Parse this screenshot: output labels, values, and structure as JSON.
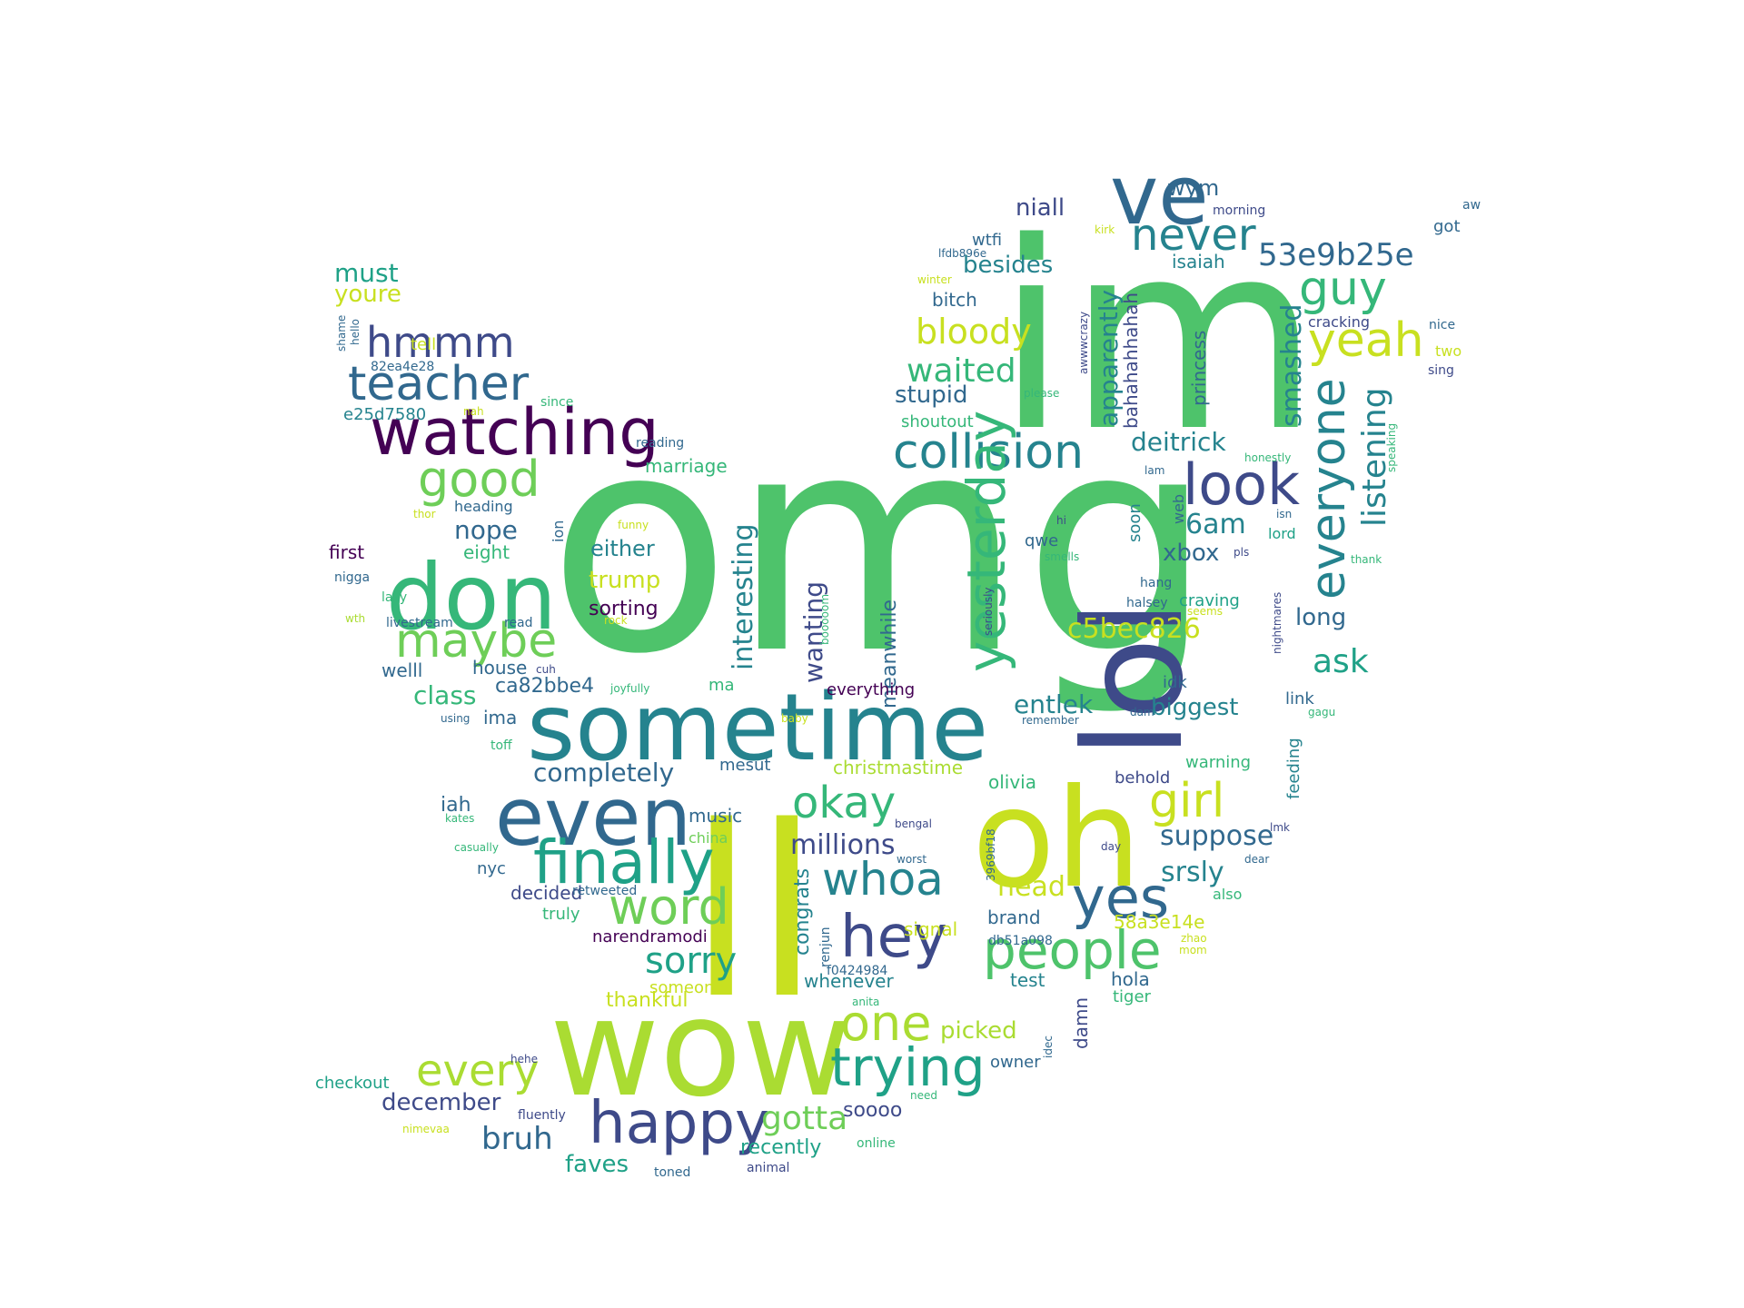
{
  "words": [
    {
      "text": "omg",
      "color": "#4ec36b"
    },
    {
      "text": "im",
      "color": "#4ec36b"
    },
    {
      "text": "ll",
      "color": "#c8e020"
    },
    {
      "text": "wow",
      "color": "#aadc32"
    },
    {
      "text": "lol",
      "color": "#3e4a89"
    },
    {
      "text": "oh",
      "color": "#c8e020"
    },
    {
      "text": "sometime",
      "color": "#25838e"
    },
    {
      "text": "don",
      "color": "#35b779"
    },
    {
      "text": "even",
      "color": "#31688e"
    },
    {
      "text": "ve",
      "color": "#31688e"
    },
    {
      "text": "watching",
      "color": "#440154"
    },
    {
      "text": "finally",
      "color": "#1fa187"
    },
    {
      "text": "happy",
      "color": "#3e4a89"
    },
    {
      "text": "collision",
      "color": "#25838e"
    },
    {
      "text": "look",
      "color": "#3e4a89"
    },
    {
      "text": "hey",
      "color": "#3e4a89"
    },
    {
      "text": "people",
      "color": "#4ec36b"
    },
    {
      "text": "yes",
      "color": "#31688e"
    },
    {
      "text": "trying",
      "color": "#1fa187"
    },
    {
      "text": "word",
      "color": "#6ece58"
    },
    {
      "text": "maybe",
      "color": "#6ece58"
    },
    {
      "text": "everyone",
      "color": "#25838e"
    },
    {
      "text": "yesterday",
      "color": "#35b779"
    },
    {
      "text": "teacher",
      "color": "#31688e"
    },
    {
      "text": "good",
      "color": "#6ece58"
    },
    {
      "text": "guy",
      "color": "#35b779"
    },
    {
      "text": "yeah",
      "color": "#c8e020"
    },
    {
      "text": "girl",
      "color": "#c8e020"
    },
    {
      "text": "okay",
      "color": "#35b779"
    },
    {
      "text": "whoa",
      "color": "#25838e"
    },
    {
      "text": "one",
      "color": "#aadc32"
    },
    {
      "text": "every",
      "color": "#aadc32"
    },
    {
      "text": "never",
      "color": "#25838e"
    },
    {
      "text": "hmmm",
      "color": "#3e4a89"
    },
    {
      "text": "bloody",
      "color": "#c8e020"
    },
    {
      "text": "waited",
      "color": "#35b779"
    },
    {
      "text": "53e9b25e",
      "color": "#31688e"
    },
    {
      "text": "sorry",
      "color": "#1fa187"
    },
    {
      "text": "gotta",
      "color": "#6ece58"
    },
    {
      "text": "listening",
      "color": "#25838e"
    },
    {
      "text": "smashed",
      "color": "#25838e"
    },
    {
      "text": "interesting",
      "color": "#25838e"
    },
    {
      "text": "bruh",
      "color": "#31688e"
    },
    {
      "text": "millions",
      "color": "#3e4a89"
    },
    {
      "text": "completely",
      "color": "#31688e"
    },
    {
      "text": "suppose",
      "color": "#31688e"
    },
    {
      "text": "wanting",
      "color": "#3e4a89"
    },
    {
      "text": "apparently",
      "color": "#25838e"
    },
    {
      "text": "6am",
      "color": "#25838e"
    },
    {
      "text": "c5bec826",
      "color": "#c8e020"
    },
    {
      "text": "ask",
      "color": "#1fa187"
    },
    {
      "text": "nope",
      "color": "#31688e"
    },
    {
      "text": "srsly",
      "color": "#25838e"
    },
    {
      "text": "head",
      "color": "#c8e020"
    },
    {
      "text": "picked",
      "color": "#aadc32"
    },
    {
      "text": "december",
      "color": "#3e4a89"
    },
    {
      "text": "faves",
      "color": "#1fa187"
    },
    {
      "text": "deitrick",
      "color": "#25838e"
    },
    {
      "text": "biggest",
      "color": "#25838e"
    },
    {
      "text": "entlek",
      "color": "#25838e"
    },
    {
      "text": "stupid",
      "color": "#31688e"
    },
    {
      "text": "long",
      "color": "#31688e"
    },
    {
      "text": "xbox",
      "color": "#31688e"
    },
    {
      "text": "besides",
      "color": "#25838e"
    },
    {
      "text": "niall",
      "color": "#3e4a89"
    },
    {
      "text": "trump",
      "color": "#c8e020"
    },
    {
      "text": "class",
      "color": "#35b779"
    },
    {
      "text": "meanwhile",
      "color": "#31688e"
    },
    {
      "text": "congrats",
      "color": "#25838e"
    },
    {
      "text": "must",
      "color": "#1fa187"
    },
    {
      "text": "youre",
      "color": "#c8e020"
    },
    {
      "text": "either",
      "color": "#25838e"
    },
    {
      "text": "sorting",
      "color": "#440154"
    },
    {
      "text": "ca82bbe4",
      "color": "#31688e"
    },
    {
      "text": "recently",
      "color": "#1fa187"
    },
    {
      "text": "soooo",
      "color": "#3e4a89"
    },
    {
      "text": "wym",
      "color": "#31688e"
    },
    {
      "text": "isaiah",
      "color": "#25838e"
    },
    {
      "text": "bahahahhahah",
      "color": "#3e4a89"
    },
    {
      "text": "princess",
      "color": "#31688e"
    },
    {
      "text": "shoutout",
      "color": "#35b779"
    },
    {
      "text": "marriage",
      "color": "#35b779"
    },
    {
      "text": "eight",
      "color": "#35b779"
    },
    {
      "text": "first",
      "color": "#440154"
    },
    {
      "text": "welll",
      "color": "#31688e"
    },
    {
      "text": "house",
      "color": "#31688e"
    },
    {
      "text": "ima",
      "color": "#31688e"
    },
    {
      "text": "iah",
      "color": "#31688e"
    },
    {
      "text": "music",
      "color": "#31688e"
    },
    {
      "text": "decided",
      "color": "#3e4a89"
    },
    {
      "text": "narendramodi",
      "color": "#440154"
    },
    {
      "text": "thankful",
      "color": "#c8e020"
    },
    {
      "text": "whenever",
      "color": "#25838e"
    },
    {
      "text": "checkout",
      "color": "#1fa187"
    },
    {
      "text": "mesut",
      "color": "#31688e"
    },
    {
      "text": "christmastime",
      "color": "#aadc32"
    },
    {
      "text": "olivia",
      "color": "#35b779"
    },
    {
      "text": "behold",
      "color": "#3e4a89"
    },
    {
      "text": "warning",
      "color": "#35b779"
    },
    {
      "text": "brand",
      "color": "#31688e"
    },
    {
      "text": "58a3e14e",
      "color": "#c8e020"
    },
    {
      "text": "hola",
      "color": "#31688e"
    },
    {
      "text": "test",
      "color": "#25838e"
    },
    {
      "text": "signal",
      "color": "#c8e020"
    },
    {
      "text": "owner",
      "color": "#31688e"
    },
    {
      "text": "damn",
      "color": "#3e4a89"
    },
    {
      "text": "tiger",
      "color": "#35b779"
    },
    {
      "text": "everything",
      "color": "#440154"
    },
    {
      "text": "ma",
      "color": "#35b779"
    },
    {
      "text": "link",
      "color": "#31688e"
    },
    {
      "text": "idk",
      "color": "#31688e"
    },
    {
      "text": "craving",
      "color": "#1fa187"
    },
    {
      "text": "feeding",
      "color": "#25838e"
    },
    {
      "text": "qwe",
      "color": "#31688e"
    },
    {
      "text": "soon",
      "color": "#25838e"
    },
    {
      "text": "web",
      "color": "#31688e"
    },
    {
      "text": "lord",
      "color": "#1fa187"
    },
    {
      "text": "bitch",
      "color": "#31688e"
    },
    {
      "text": "wtfi",
      "color": "#31688e"
    },
    {
      "text": "got",
      "color": "#31688e"
    },
    {
      "text": "cracking",
      "color": "#3e4a89"
    },
    {
      "text": "morning",
      "color": "#3e4a89"
    },
    {
      "text": "tell",
      "color": "#c8e020"
    },
    {
      "text": "82ea4e28",
      "color": "#31688e"
    },
    {
      "text": "e25d7580",
      "color": "#25838e"
    },
    {
      "text": "heading",
      "color": "#31688e"
    },
    {
      "text": "ion",
      "color": "#31688e"
    },
    {
      "text": "nigga",
      "color": "#31688e"
    },
    {
      "text": "lazy",
      "color": "#35b779"
    },
    {
      "text": "wth",
      "color": "#aadc32"
    },
    {
      "text": "livestream",
      "color": "#31688e"
    },
    {
      "text": "read",
      "color": "#31688e"
    },
    {
      "text": "cuh",
      "color": "#3e4a89"
    },
    {
      "text": "using",
      "color": "#31688e"
    },
    {
      "text": "toff",
      "color": "#35b779"
    },
    {
      "text": "kates",
      "color": "#35b779"
    },
    {
      "text": "casually",
      "color": "#35b779"
    },
    {
      "text": "nyc",
      "color": "#31688e"
    },
    {
      "text": "truly",
      "color": "#35b779"
    },
    {
      "text": "china",
      "color": "#6ece58"
    },
    {
      "text": "retweeted",
      "color": "#31688e"
    },
    {
      "text": "someone",
      "color": "#c8e020"
    },
    {
      "text": "fluently",
      "color": "#3e4a89"
    },
    {
      "text": "nimevaa",
      "color": "#c8e020"
    },
    {
      "text": "hehe",
      "color": "#3e4a89"
    },
    {
      "text": "toned",
      "color": "#31688e"
    },
    {
      "text": "animal",
      "color": "#3e4a89"
    },
    {
      "text": "online",
      "color": "#35b779"
    },
    {
      "text": "need",
      "color": "#35b779"
    },
    {
      "text": "anita",
      "color": "#35b779"
    },
    {
      "text": "f0424984",
      "color": "#31688e"
    },
    {
      "text": "renjun",
      "color": "#31688e"
    },
    {
      "text": "3969bf18",
      "color": "#31688e"
    },
    {
      "text": "bengal",
      "color": "#3e4a89"
    },
    {
      "text": "worst",
      "color": "#31688e"
    },
    {
      "text": "db51a098",
      "color": "#31688e"
    },
    {
      "text": "idec",
      "color": "#31688e"
    },
    {
      "text": "day",
      "color": "#3e4a89"
    },
    {
      "text": "dear",
      "color": "#31688e"
    },
    {
      "text": "also",
      "color": "#35b779"
    },
    {
      "text": "zhao",
      "color": "#c8e020"
    },
    {
      "text": "mom",
      "color": "#c8e020"
    },
    {
      "text": "lmk",
      "color": "#3e4a89"
    },
    {
      "text": "gagu",
      "color": "#35b779"
    },
    {
      "text": "remember",
      "color": "#31688e"
    },
    {
      "text": "dam",
      "color": "#31688e"
    },
    {
      "text": "halsey",
      "color": "#31688e"
    },
    {
      "text": "hang",
      "color": "#31688e"
    },
    {
      "text": "seems",
      "color": "#c8e020"
    },
    {
      "text": "nightmares",
      "color": "#3e4a89"
    },
    {
      "text": "thank",
      "color": "#35b779"
    },
    {
      "text": "pls",
      "color": "#3e4a89"
    },
    {
      "text": "isn",
      "color": "#31688e"
    },
    {
      "text": "hi",
      "color": "#3e4a89"
    },
    {
      "text": "smells",
      "color": "#35b779"
    },
    {
      "text": "seriously",
      "color": "#3e4a89"
    },
    {
      "text": "booooom",
      "color": "#35b779"
    },
    {
      "text": "baby",
      "color": "#c8e020"
    },
    {
      "text": "joyfully",
      "color": "#35b779"
    },
    {
      "text": "rock",
      "color": "#c8e020"
    },
    {
      "text": "funny",
      "color": "#c8e020"
    },
    {
      "text": "reading",
      "color": "#31688e"
    },
    {
      "text": "since",
      "color": "#35b779"
    },
    {
      "text": "nah",
      "color": "#c8e020"
    },
    {
      "text": "hello",
      "color": "#31688e"
    },
    {
      "text": "shame",
      "color": "#31688e"
    },
    {
      "text": "thor",
      "color": "#c8e020"
    },
    {
      "text": "lam",
      "color": "#31688e"
    },
    {
      "text": "honestly",
      "color": "#35b779"
    },
    {
      "text": "speaking",
      "color": "#35b779"
    },
    {
      "text": "awwwcrazy",
      "color": "#3e4a89"
    },
    {
      "text": "please",
      "color": "#35b779"
    },
    {
      "text": "lfdb896e",
      "color": "#31688e"
    },
    {
      "text": "winter",
      "color": "#c8e020"
    },
    {
      "text": "kirk",
      "color": "#c8e020"
    },
    {
      "text": "sing",
      "color": "#3e4a89"
    },
    {
      "text": "nice",
      "color": "#31688e"
    },
    {
      "text": "two",
      "color": "#c8e020"
    },
    {
      "text": "aw",
      "color": "#31688e"
    }
  ]
}
